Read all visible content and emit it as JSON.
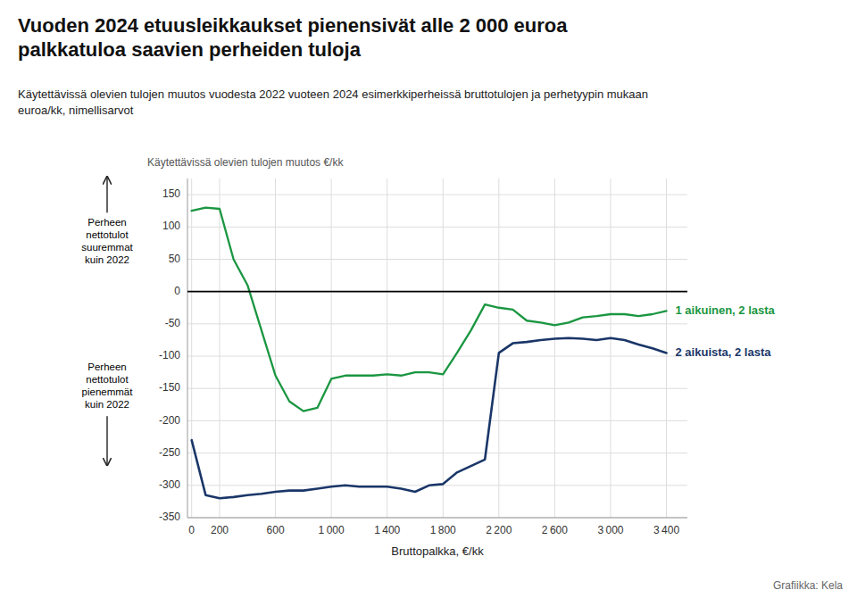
{
  "chart_data": {
    "type": "line",
    "title": "Vuoden 2024 etuusleikkaukset pienensivät alle 2 000 euroa\npalkkatuloa saavien perheiden tuloja",
    "subtitle": "Käytettävissä olevien tulojen muutos vuodesta 2022 vuoteen 2024 esimerkkiperheissä bruttotulojen ja perhetyypin mukaan\neuroa/kk, nimellisarvot",
    "ylabel": "Käytettävissä olevien tulojen muutos €/kk",
    "xlabel": "Bruttopalkka, €/kk",
    "annotations": [
      "Perheen\nnettotulot\nsuuremmat\nkuin 2022",
      "Perheen\nnettotulot\npienemmät\nkuin 2022",
      "Grafiikka: Kela"
    ],
    "x": [
      0,
      100,
      200,
      300,
      400,
      500,
      600,
      700,
      800,
      900,
      1000,
      1100,
      1200,
      1300,
      1400,
      1500,
      1600,
      1700,
      1800,
      1900,
      2000,
      2100,
      2200,
      2300,
      2400,
      2500,
      2600,
      2700,
      2800,
      2900,
      3000,
      3100,
      3200,
      3300,
      3400
    ],
    "series": [
      {
        "name": "1 aikuinen, 2 lasta",
        "color": "#1a9641",
        "values": [
          125,
          130,
          128,
          50,
          10,
          -60,
          -130,
          -170,
          -185,
          -180,
          -135,
          -130,
          -130,
          -130,
          -128,
          -130,
          -125,
          -125,
          -128,
          -95,
          -60,
          -20,
          -25,
          -28,
          -45,
          -48,
          -52,
          -48,
          -40,
          -38,
          -35,
          -35,
          -38,
          -35,
          -30
        ]
      },
      {
        "name": "2 aikuista, 2 lasta",
        "color": "#1a3668",
        "values": [
          -230,
          -315,
          -320,
          -318,
          -315,
          -313,
          -310,
          -308,
          -308,
          -305,
          -302,
          -300,
          -302,
          -302,
          -302,
          -305,
          -310,
          -300,
          -298,
          -280,
          -270,
          -260,
          -95,
          -80,
          -78,
          -75,
          -73,
          -72,
          -73,
          -75,
          -72,
          -75,
          -82,
          -88,
          -95
        ]
      }
    ],
    "xlim": [
      -30,
      3550
    ],
    "xticks": [
      0,
      200,
      600,
      {
        "value": 1000,
        "label": "1 000"
      },
      {
        "value": 1400,
        "label": "1 400"
      },
      {
        "value": 1800,
        "label": "1 800"
      },
      {
        "value": 2200,
        "label": "2 200"
      },
      {
        "value": 2600,
        "label": "2 600"
      },
      {
        "value": 3000,
        "label": "3 000"
      },
      {
        "value": 3400,
        "label": "3 400"
      }
    ],
    "ylim": [
      -350,
      175
    ],
    "yticks": [
      -350,
      -300,
      -250,
      -200,
      -150,
      -100,
      -50,
      0,
      50,
      100,
      150
    ],
    "grid": true
  }
}
